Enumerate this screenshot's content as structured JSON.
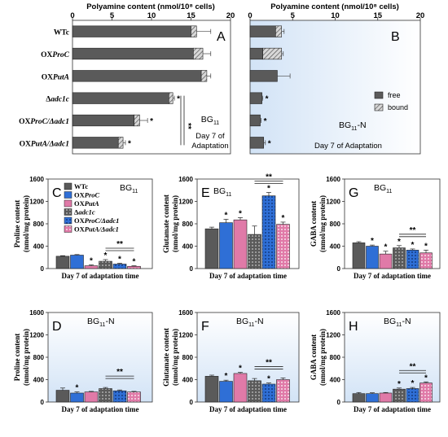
{
  "colors": {
    "dark": "#5a5a5a",
    "blue": "#2f6fd6",
    "pink": "#e07aa8",
    "panel_bg": "#dce9f7",
    "bar_edge": "#222222"
  },
  "top": {
    "xlabel": "Polyamine content (nmol/10⁸ cells)",
    "ticks": [
      "0",
      "5",
      "10",
      "15",
      "20"
    ],
    "xlim": [
      0,
      20
    ],
    "categories": [
      "WTc",
      "OX",
      "OX",
      "Δadc1c",
      "OXProC/Δadc1",
      "OXPutA/Δadc1"
    ],
    "cat_prefix": [
      "WTc",
      "OX",
      "OX",
      "Δ",
      "OX",
      "OX"
    ],
    "cat_italic": [
      "",
      "ProC",
      "PutA",
      "adc1c",
      "ProC/Δadc1",
      "PutA/Δadc1"
    ]
  },
  "chart_data": [
    {
      "type": "bar",
      "panel": "A",
      "orientation": "horizontal",
      "condition": "BG11",
      "note": "Day 7 of Adaptation",
      "categories": [
        "WTc",
        "OXProC",
        "OXPutA",
        "Δadc1c",
        "OXProC/Δadc1",
        "OXPutA/Δadc1"
      ],
      "series": [
        {
          "name": "free",
          "values": [
            15.0,
            15.3,
            16.3,
            12.2,
            7.8,
            5.8
          ]
        },
        {
          "name": "bound",
          "values": [
            0.7,
            1.2,
            0.7,
            0.5,
            0.7,
            0.6
          ]
        }
      ],
      "errors": [
        1.8,
        1.0,
        0.5,
        0.2,
        1.0,
        0.3
      ],
      "sig": [
        "",
        "",
        "",
        "*",
        "*",
        "*"
      ],
      "bracket": "**",
      "xlim": [
        0,
        20
      ]
    },
    {
      "type": "bar",
      "panel": "B",
      "orientation": "horizontal",
      "condition": "BG11-N",
      "note": "Day 7 of Adaptation",
      "categories": [
        "WTc",
        "OXProC",
        "OXPutA",
        "Δadc1c",
        "OXProC/Δadc1",
        "OXPutA/Δadc1"
      ],
      "series": [
        {
          "name": "free",
          "values": [
            3.0,
            1.5,
            3.2,
            1.4,
            1.2,
            1.6
          ]
        },
        {
          "name": "bound",
          "values": [
            0.7,
            2.2,
            0.0,
            0.0,
            0.0,
            0.0
          ]
        }
      ],
      "errors": [
        0.3,
        0.2,
        1.5,
        0.1,
        0.1,
        0.2
      ],
      "sig": [
        "",
        "",
        "",
        "*",
        "*",
        "*"
      ],
      "legend": [
        "free",
        "bound"
      ],
      "xlim": [
        0,
        20
      ]
    },
    {
      "type": "bar",
      "panel": "C",
      "condition": "BG11",
      "ylabel": "Proline content (nmol/mg protein)",
      "xlabel": "Day 7 of adaptation time",
      "ylim": [
        0,
        1600
      ],
      "categories": [
        "WTc",
        "OXProC",
        "OXPutA",
        "Δadc1c",
        "OXProC/Δadc1",
        "OXPutA/Δadc1"
      ],
      "values": [
        220,
        240,
        50,
        130,
        80,
        40
      ],
      "errors": [
        10,
        10,
        15,
        30,
        15,
        10
      ],
      "sig": [
        "",
        "",
        "*",
        "*",
        "*",
        "*"
      ],
      "bracket": "**"
    },
    {
      "type": "bar",
      "panel": "E",
      "condition": "BG11",
      "ylabel": "Glutamate content (nmol/mg protein)",
      "xlabel": "Day 7 of adaptation time",
      "ylim": [
        0,
        1600
      ],
      "categories": [
        "WTc",
        "OXProC",
        "OXPutA",
        "Δadc1c",
        "OXProC/Δadc1",
        "OXPutA/Δadc1"
      ],
      "values": [
        710,
        820,
        870,
        610,
        1300,
        790
      ],
      "errors": [
        30,
        60,
        40,
        150,
        60,
        40
      ],
      "sig": [
        "",
        "*",
        "*",
        "",
        "*",
        "*"
      ],
      "bracket": "**"
    },
    {
      "type": "bar",
      "panel": "G",
      "condition": "BG11",
      "ylabel": "GABA content (nmol/mg protein)",
      "xlabel": "Day 7 of adaptation time",
      "ylim": [
        0,
        1600
      ],
      "categories": [
        "WTc",
        "OXProC",
        "OXPutA",
        "Δadc1c",
        "OXProC/Δadc1",
        "OXPutA/Δadc1"
      ],
      "values": [
        460,
        400,
        260,
        370,
        330,
        280
      ],
      "errors": [
        20,
        20,
        50,
        40,
        20,
        50
      ],
      "sig": [
        "",
        "*",
        "*",
        "*",
        "*",
        "*"
      ],
      "bracket": "**"
    },
    {
      "type": "bar",
      "panel": "D",
      "condition": "BG11-N",
      "ylabel": "Proline content (nmol/mg protein)",
      "xlabel": "Day 7 of adaptation time",
      "ylim": [
        0,
        1600
      ],
      "categories": [
        "WTc",
        "OXProC",
        "OXPutA",
        "Δadc1c",
        "OXProC/Δadc1",
        "OXPutA/Δadc1"
      ],
      "values": [
        210,
        160,
        180,
        240,
        200,
        180
      ],
      "errors": [
        40,
        20,
        10,
        20,
        15,
        10
      ],
      "sig": [
        "",
        "*",
        "",
        "",
        "",
        ""
      ],
      "bracket": "**"
    },
    {
      "type": "bar",
      "panel": "F",
      "condition": "BG11-N",
      "ylabel": "Glutamate content (nmol/mg protein)",
      "xlabel": "Day 7 of adaptation time",
      "ylim": [
        0,
        1600
      ],
      "categories": [
        "WTc",
        "OXProC",
        "OXPutA",
        "Δadc1c",
        "OXProC/Δadc1",
        "OXPutA/Δadc1"
      ],
      "values": [
        460,
        370,
        510,
        380,
        320,
        400
      ],
      "errors": [
        20,
        20,
        20,
        40,
        20,
        30
      ],
      "sig": [
        "",
        "*",
        "*",
        "",
        "*",
        ""
      ],
      "bracket": "**"
    },
    {
      "type": "bar",
      "panel": "H",
      "condition": "BG11-N",
      "ylabel": "GABA content (nmol/mg protein)",
      "xlabel": "Day 7 of adaptation time",
      "ylim": [
        0,
        1600
      ],
      "categories": [
        "WTc",
        "OXProC",
        "OXPutA",
        "Δadc1c",
        "OXProC/Δadc1",
        "OXPutA/Δadc1"
      ],
      "values": [
        150,
        150,
        160,
        230,
        240,
        340
      ],
      "errors": [
        20,
        15,
        10,
        20,
        20,
        20
      ],
      "sig": [
        "",
        "",
        "",
        "*",
        "*",
        "*"
      ],
      "bracket": "**"
    }
  ],
  "bottom_ticks": [
    "0",
    "400",
    "800",
    "1200",
    "1600"
  ],
  "legend_C": [
    {
      "prefix": "WTc",
      "italic": "",
      "style": "dark"
    },
    {
      "prefix": "OX",
      "italic": "ProC",
      "style": "blue"
    },
    {
      "prefix": "OX",
      "italic": "PutA",
      "style": "pink"
    },
    {
      "prefix": "Δ",
      "italic": "adc1c",
      "style": "dark_dot"
    },
    {
      "prefix": "OX",
      "italic": "ProC/Δadc1",
      "style": "blue_dot"
    },
    {
      "prefix": "OX",
      "italic": "PutA/Δadc1",
      "style": "pink_dot"
    }
  ]
}
